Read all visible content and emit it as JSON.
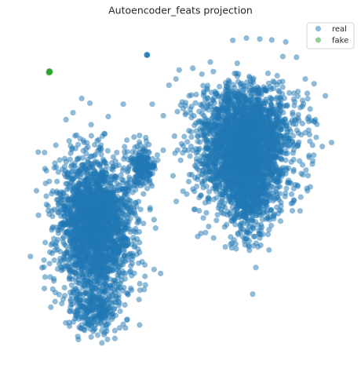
{
  "chart_data": {
    "type": "scatter",
    "title": "Autoencoder_feats projection",
    "xlabel": "",
    "ylabel": "",
    "axes_visible": false,
    "grid": false,
    "legend_position": "top-right",
    "marker_alpha": 0.5,
    "xlim": [
      0,
      100
    ],
    "ylim": [
      0,
      100
    ],
    "series": [
      {
        "name": "real",
        "color": "#1f77b4",
        "clusters": [
          {
            "shape": "blob",
            "center": [
              23.8,
              37.6
            ],
            "rx": 10.5,
            "ry": 18.4,
            "count": 2400
          },
          {
            "shape": "blob",
            "center": [
              23.8,
              11.8
            ],
            "rx": 7.3,
            "ry": 7.7,
            "count": 300
          },
          {
            "shape": "blob",
            "center": [
              38.6,
              56.5
            ],
            "rx": 3.4,
            "ry": 4.9,
            "count": 180
          },
          {
            "shape": "blob",
            "center": [
              69.8,
              61.1
            ],
            "rx": 12.8,
            "ry": 17.1,
            "count": 2200
          },
          {
            "shape": "blob",
            "center": [
              70.5,
              50.8
            ],
            "rx": 5.9,
            "ry": 17.3,
            "count": 600
          },
          {
            "shape": "blob",
            "center": [
              70.6,
              69.0
            ],
            "rx": 14.2,
            "ry": 12.3,
            "count": 500
          }
        ],
        "points": [
          [
            6.2,
            60.5
          ],
          [
            8.0,
            26.7
          ],
          [
            8.3,
            21.4
          ],
          [
            7.4,
            24.3
          ],
          [
            32.4,
            75.5
          ],
          [
            19.6,
            77.3
          ],
          [
            22.1,
            75.8
          ],
          [
            20.9,
            10.0
          ],
          [
            39.2,
            18.9
          ],
          [
            43.9,
            22.5
          ],
          [
            41.2,
            49.9
          ],
          [
            34.0,
            26.7
          ],
          [
            37.4,
            65.7
          ],
          [
            41.3,
            75.5
          ],
          [
            49.6,
            86.2
          ],
          [
            48.6,
            83.4
          ],
          [
            53.4,
            74.8
          ],
          [
            56.6,
            84.9
          ],
          [
            60.1,
            85.7
          ],
          [
            66.1,
            95.5
          ],
          [
            70.3,
            96.2
          ],
          [
            74.4,
            95.9
          ],
          [
            78.1,
            95.6
          ],
          [
            82.4,
            95.0
          ],
          [
            85.7,
            90.2
          ],
          [
            88.4,
            83.4
          ],
          [
            89.0,
            78.9
          ],
          [
            91.1,
            81.9
          ],
          [
            94.6,
            78.1
          ],
          [
            92.0,
            69.2
          ],
          [
            89.6,
            58.9
          ],
          [
            87.7,
            53.4
          ],
          [
            86.1,
            49.8
          ],
          [
            86.8,
            42.1
          ],
          [
            82.2,
            46.6
          ],
          [
            77.8,
            42.2
          ],
          [
            74.4,
            33.6
          ],
          [
            70.9,
            31.3
          ],
          [
            67.0,
            31.7
          ],
          [
            63.8,
            30.8
          ],
          [
            60.2,
            33.6
          ],
          [
            57.7,
            35.3
          ],
          [
            55.3,
            34.1
          ],
          [
            58.6,
            46.3
          ],
          [
            56.8,
            53.5
          ],
          [
            55.5,
            61.3
          ],
          [
            44.7,
            71.9
          ],
          [
            39.3,
            65.0
          ]
        ]
      },
      {
        "name": "fake",
        "color": "#2ca02c",
        "points": [
          [
            9.5,
            85.6
          ],
          [
            9.7,
            85.4
          ],
          [
            9.6,
            85.9
          ],
          [
            9.9,
            85.6
          ],
          [
            9.4,
            85.3
          ],
          [
            9.8,
            85.8
          ],
          [
            9.7,
            85.5
          ],
          [
            9.6,
            85.7
          ]
        ]
      }
    ],
    "overlay": {
      "series": "real",
      "points": [
        [
          39.7,
          90.8
        ],
        [
          39.6,
          90.9
        ],
        [
          39.8,
          90.9
        ],
        [
          39.7,
          91.0
        ]
      ]
    }
  }
}
